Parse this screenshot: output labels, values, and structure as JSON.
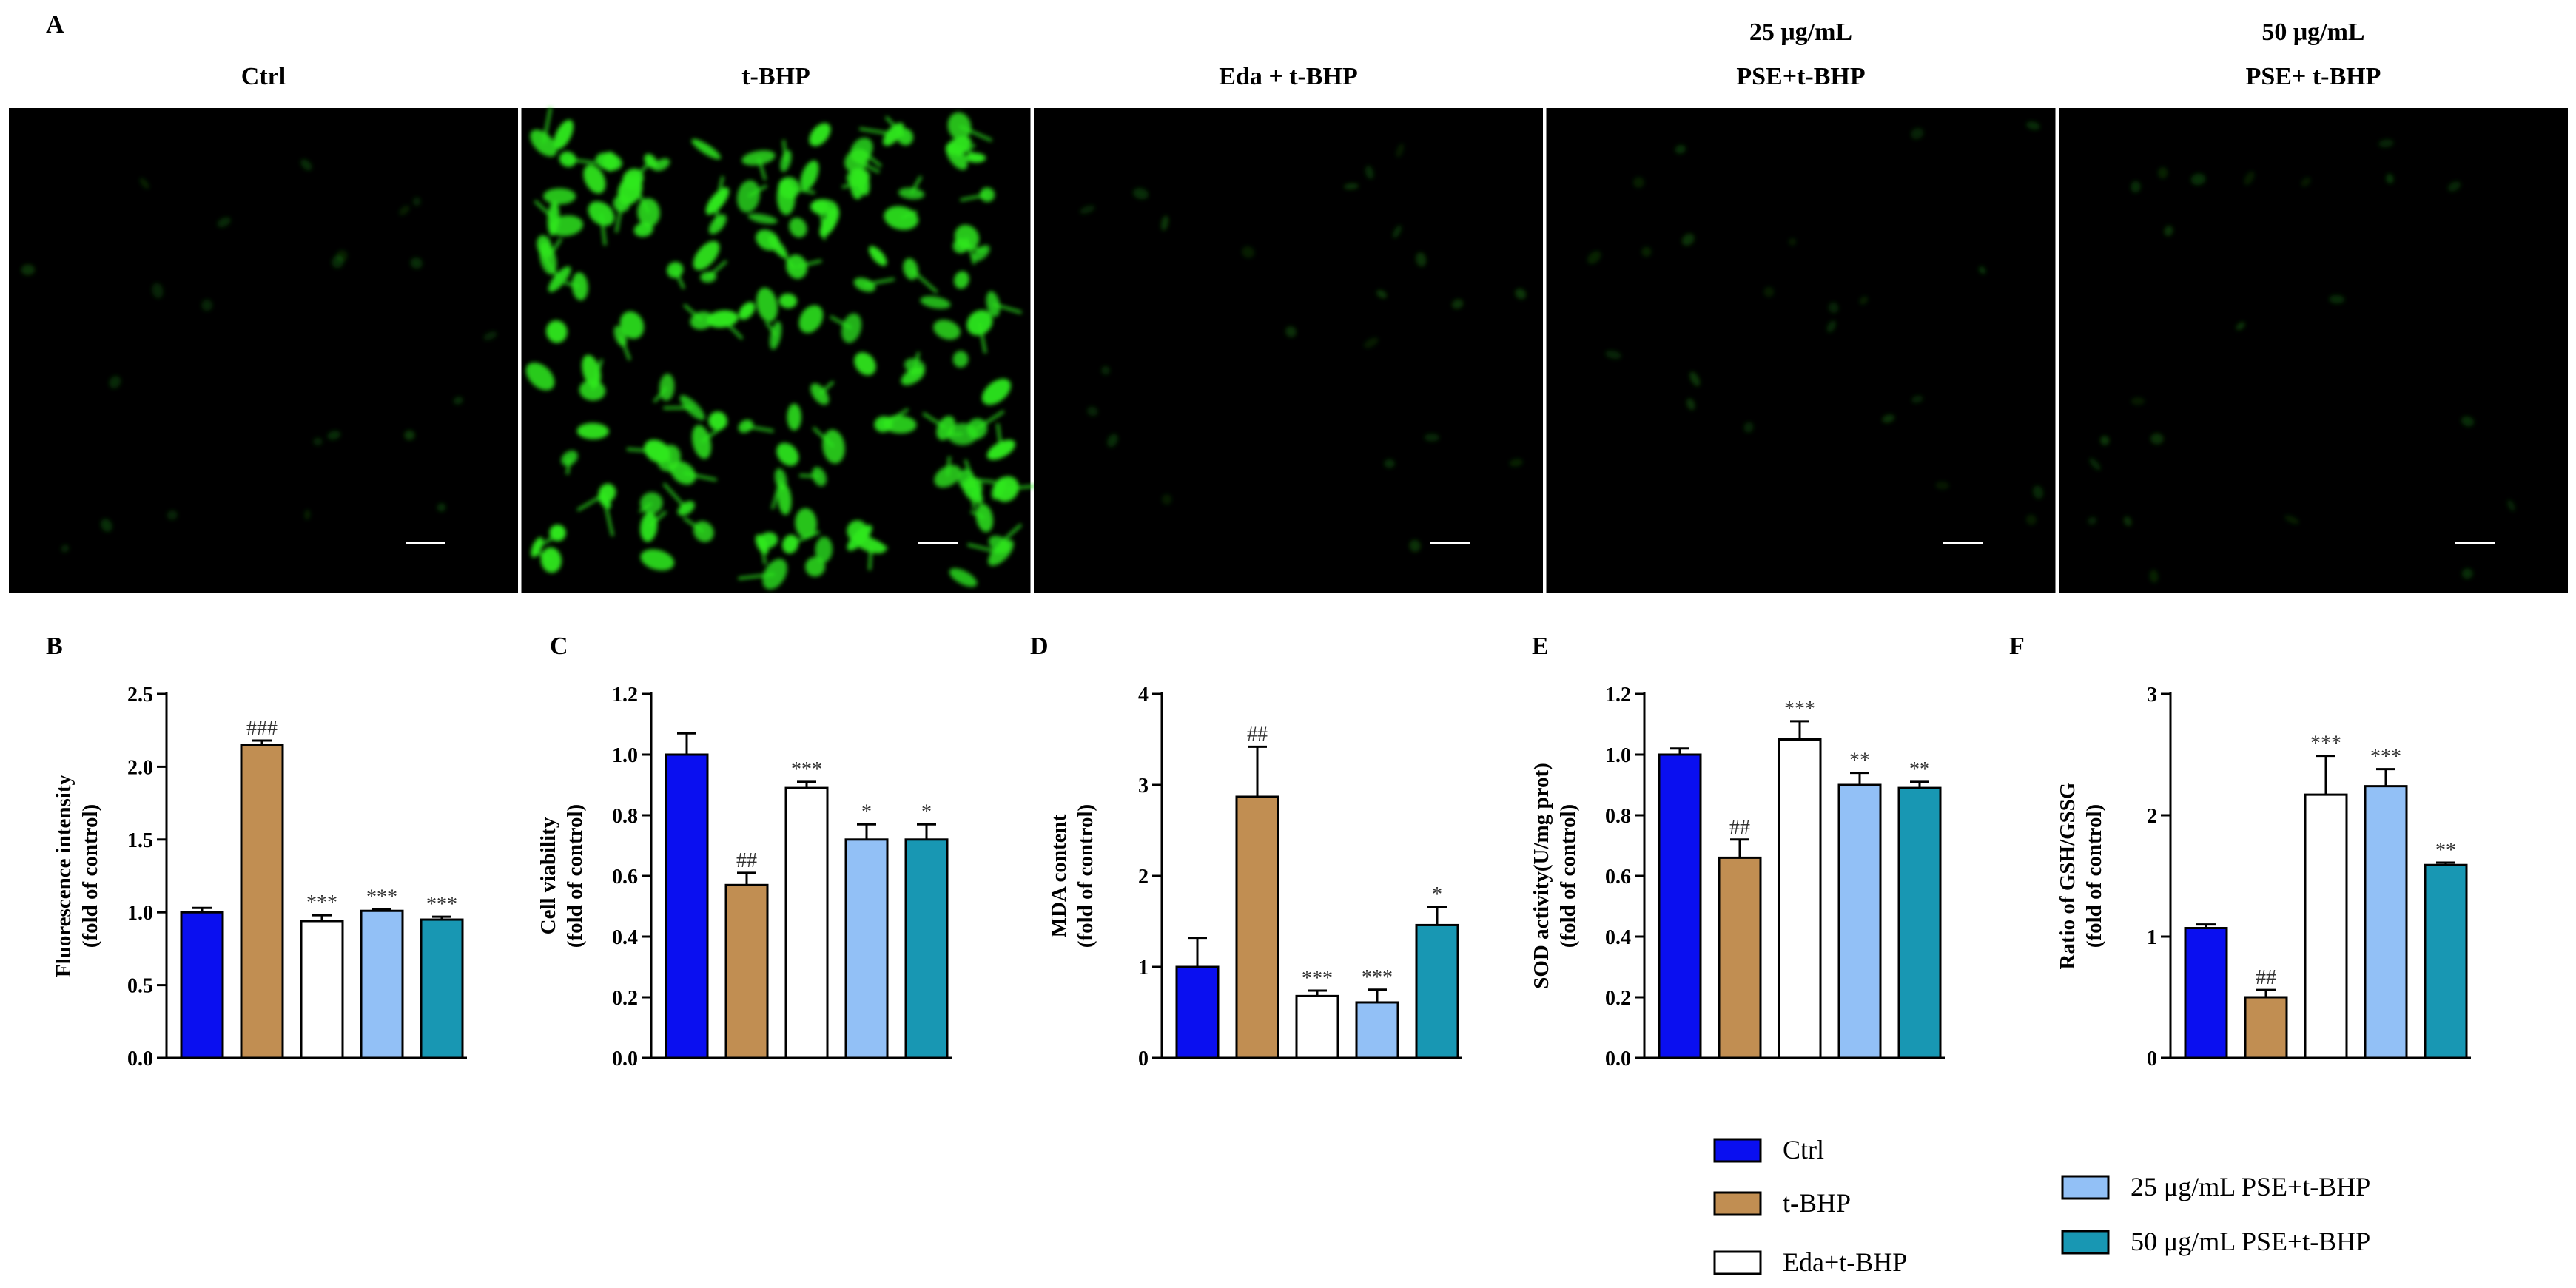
{
  "panel_a": {
    "letter": "A",
    "images": [
      {
        "label_lines": [
          "Ctrl"
        ],
        "intensity": 1.0
      },
      {
        "label_lines": [
          "t-BHP"
        ],
        "intensity": 2.15
      },
      {
        "label_lines": [
          "Eda + t-BHP"
        ],
        "intensity": 0.94
      },
      {
        "label_lines": [
          "25 μg/mL",
          "PSE+t-BHP"
        ],
        "intensity": 1.01
      },
      {
        "label_lines": [
          "50 μg/mL",
          "PSE+ t-BHP"
        ],
        "intensity": 0.95
      }
    ]
  },
  "colors": {
    "Ctrl": "#0a0ff0",
    "t-BHP": "#c18e52",
    "Eda+t-BHP": "#ffffff",
    "25 μg/mL PSE+t-BHP": "#92c0f6",
    "50 μg/mL PSE+t-BHP": "#1897b3",
    "fluorescence": "#2ee81e"
  },
  "chart_data": [
    {
      "type": "bar",
      "panel": "B",
      "categories": [
        "Ctrl",
        "t-BHP",
        "Eda+t-BHP",
        "25 μg/mL PSE+t-BHP",
        "50 μg/mL PSE+t-BHP"
      ],
      "values": [
        1.0,
        2.15,
        0.94,
        1.01,
        0.95
      ],
      "errors": [
        0.03,
        0.03,
        0.04,
        0.01,
        0.02
      ],
      "significance": [
        "",
        "###",
        "***",
        "***",
        "***"
      ],
      "ylabel": [
        "Fluorescence intensity",
        "(fold of control)"
      ],
      "ylim": [
        0,
        2.5
      ],
      "yticks": [
        "0.0",
        "0.5",
        "1.0",
        "1.5",
        "2.0",
        "2.5"
      ],
      "ytick_values": [
        0,
        0.5,
        1.0,
        1.5,
        2.0,
        2.5
      ]
    },
    {
      "type": "bar",
      "panel": "C",
      "categories": [
        "Ctrl",
        "t-BHP",
        "Eda+t-BHP",
        "25 μg/mL PSE+t-BHP",
        "50 μg/mL PSE+t-BHP"
      ],
      "values": [
        1.0,
        0.57,
        0.89,
        0.72,
        0.72
      ],
      "errors": [
        0.07,
        0.04,
        0.02,
        0.05,
        0.05
      ],
      "significance": [
        "",
        "##",
        "***",
        "*",
        "*"
      ],
      "ylabel": [
        "Cell viability",
        "(fold of control)"
      ],
      "ylim": [
        0,
        1.2
      ],
      "yticks": [
        "0.0",
        "0.2",
        "0.4",
        "0.6",
        "0.8",
        "1.0",
        "1.2"
      ],
      "ytick_values": [
        0,
        0.2,
        0.4,
        0.6,
        0.8,
        1.0,
        1.2
      ]
    },
    {
      "type": "bar",
      "panel": "D",
      "categories": [
        "Ctrl",
        "t-BHP",
        "Eda+t-BHP",
        "25 μg/mL PSE+t-BHP",
        "50 μg/mL PSE+t-BHP"
      ],
      "values": [
        1.0,
        2.87,
        0.68,
        0.61,
        1.46
      ],
      "errors": [
        0.32,
        0.55,
        0.06,
        0.14,
        0.2
      ],
      "significance": [
        "",
        "##",
        "***",
        "***",
        "*"
      ],
      "ylabel": [
        "MDA content",
        "(fold of control)"
      ],
      "ylim": [
        0,
        4
      ],
      "yticks": [
        "0",
        "1",
        "2",
        "3",
        "4"
      ],
      "ytick_values": [
        0,
        1,
        2,
        3,
        4
      ]
    },
    {
      "type": "bar",
      "panel": "E",
      "categories": [
        "Ctrl",
        "t-BHP",
        "Eda+t-BHP",
        "25 μg/mL PSE+t-BHP",
        "50 μg/mL PSE+t-BHP"
      ],
      "values": [
        1.0,
        0.66,
        1.05,
        0.9,
        0.89
      ],
      "errors": [
        0.02,
        0.06,
        0.06,
        0.04,
        0.02
      ],
      "significance": [
        "",
        "##",
        "***",
        "**",
        "**"
      ],
      "ylabel": [
        "SOD activity(U/mg prot)",
        "(fold of control)"
      ],
      "ylim": [
        0,
        1.2
      ],
      "yticks": [
        "0.0",
        "0.2",
        "0.4",
        "0.6",
        "0.8",
        "1.0",
        "1.2"
      ],
      "ytick_values": [
        0,
        0.2,
        0.4,
        0.6,
        0.8,
        1.0,
        1.2
      ]
    },
    {
      "type": "bar",
      "panel": "F",
      "categories": [
        "Ctrl",
        "t-BHP",
        "Eda+t-BHP",
        "25 μg/mL PSE+t-BHP",
        "50 μg/mL PSE+t-BHP"
      ],
      "values": [
        1.07,
        0.5,
        2.17,
        2.24,
        1.59
      ],
      "errors": [
        0.03,
        0.06,
        0.32,
        0.14,
        0.02
      ],
      "significance": [
        "",
        "##",
        "***",
        "***",
        "**"
      ],
      "ylabel": [
        "Ratio of GSH/GSSG",
        "(fold of control)"
      ],
      "ylim": [
        0,
        3
      ],
      "yticks": [
        "0",
        "1",
        "2",
        "3"
      ],
      "ytick_values": [
        0,
        1,
        2,
        3
      ]
    }
  ],
  "legend": {
    "placement": "bottom-right",
    "items": [
      {
        "label": "Ctrl",
        "color": "#0a0ff0"
      },
      {
        "label": "t-BHP",
        "color": "#c18e52"
      },
      {
        "label": "Eda+t-BHP",
        "color": "#ffffff"
      },
      {
        "label": "25 μg/mL PSE+t-BHP",
        "color": "#92c0f6"
      },
      {
        "label": "50 μg/mL PSE+t-BHP",
        "color": "#1897b3"
      }
    ]
  }
}
